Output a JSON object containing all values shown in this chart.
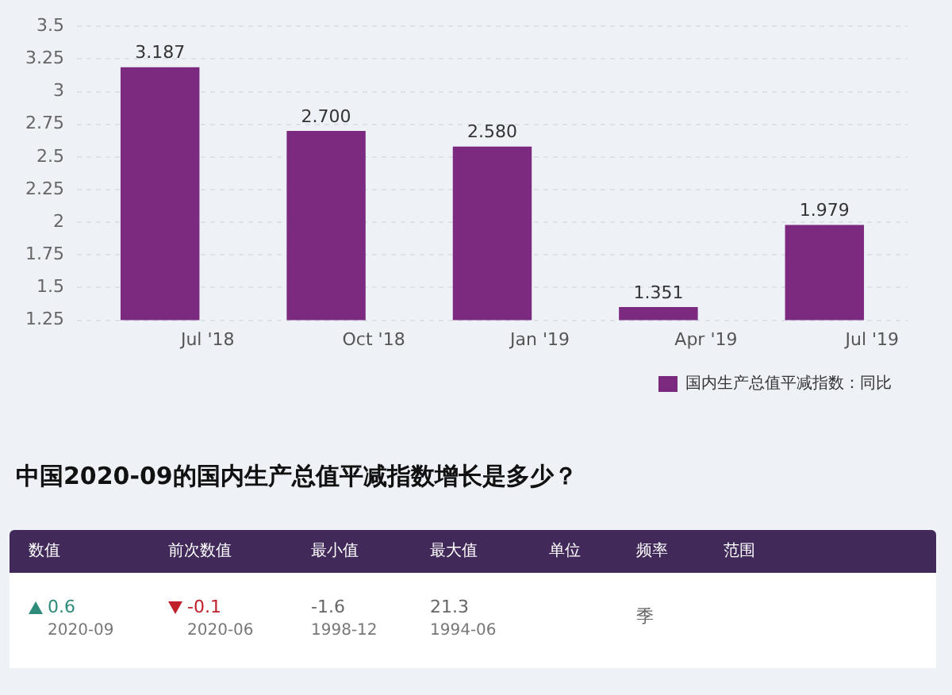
{
  "chart_data": [
    {
      "type": "bar",
      "categories": [
        "Jul '18",
        "Oct '18",
        "Jan '19",
        "Apr '19",
        "Jul '19"
      ],
      "series": [
        {
          "name": "国内生产总值平减指数：同比",
          "color": "#7b2a80",
          "values": [
            3.187,
            2.7,
            2.58,
            1.351,
            1.979
          ],
          "value_labels": [
            "3.187",
            "2.700",
            "2.580",
            "1.351",
            "1.979"
          ]
        }
      ],
      "ylim": [
        1.25,
        3.5
      ],
      "yticks": [
        1.25,
        1.5,
        1.75,
        2,
        2.25,
        2.5,
        2.75,
        3,
        3.25,
        3.5
      ],
      "grid": "y",
      "legend": "bottom right"
    },
    {
      "type": "other",
      "title": "中国2020-09的国内生产总值平减指数增长是多少？",
      "annotations": [
        "数值",
        "前次数值",
        "最小值",
        "最大值",
        "单位",
        "频率",
        "范围",
        "0.6\n2020-09",
        "-0.1\n2020-06",
        "-1.6\n1998-12",
        "21.3\n1994-06",
        "季"
      ]
    }
  ]
}
